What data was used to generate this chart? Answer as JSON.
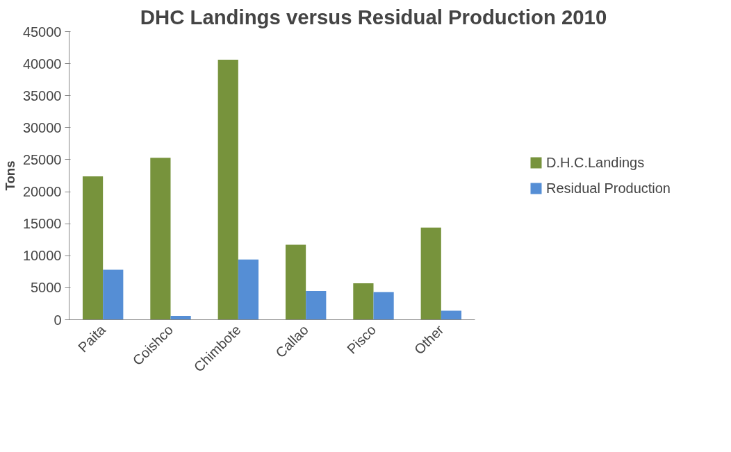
{
  "chart_data": {
    "type": "bar",
    "title": "DHC Landings versus Residual Production 2010",
    "ylabel": "Tons",
    "categories": [
      "Paita",
      "Coishco",
      "Chimbote",
      "Callao",
      "Pisco",
      "Other"
    ],
    "series": [
      {
        "name": "D.H.C.Landings",
        "color": "#77933c",
        "values": [
          22400,
          25300,
          40600,
          11700,
          5700,
          14400
        ]
      },
      {
        "name": "Residual Production",
        "color": "#558ed5",
        "values": [
          7800,
          600,
          9400,
          4500,
          4300,
          1400
        ]
      }
    ],
    "ylim": [
      0,
      45000
    ],
    "yticks": [
      0,
      5000,
      10000,
      15000,
      20000,
      25000,
      30000,
      35000,
      40000,
      45000
    ],
    "grid": false,
    "legend": "right"
  }
}
